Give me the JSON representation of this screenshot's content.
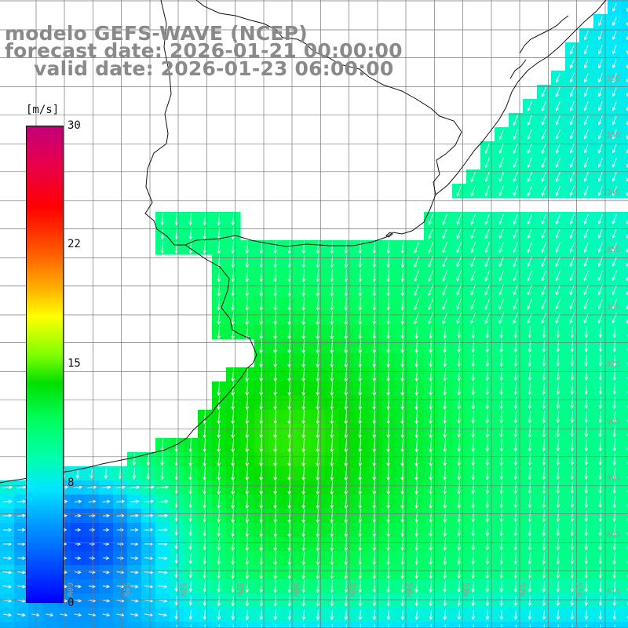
{
  "title": {
    "line1": "modelo GEFS-WAVE (NCEP)",
    "line2": "forecast date: 2026-01-21 00:00:00",
    "line3": "valid date: 2026-01-23 06:00:00"
  },
  "colorbar": {
    "unit": "[m/s]",
    "ticks": [
      "30",
      "22",
      "15",
      "8",
      "0"
    ],
    "colors": [
      "#0000ff",
      "#00a0ff",
      "#00ffff",
      "#00ff60",
      "#00e000",
      "#ffff00",
      "#ff6000",
      "#ff0000",
      "#c0007a"
    ]
  },
  "lat_labels": [
    "32S",
    "33S",
    "34S",
    "35S",
    "36S",
    "37S",
    "38S",
    "39S",
    "40S",
    "41S"
  ],
  "lon_labels": [
    "60W",
    "59W",
    "58W",
    "57W",
    "56W",
    "55W",
    "54W",
    "53W",
    "52W",
    "51W"
  ],
  "colors": {
    "land": "#ffffff",
    "grid": "#777777",
    "coast": "#111111",
    "arrow": "#ffffff",
    "title": "#8a8a8a"
  }
}
